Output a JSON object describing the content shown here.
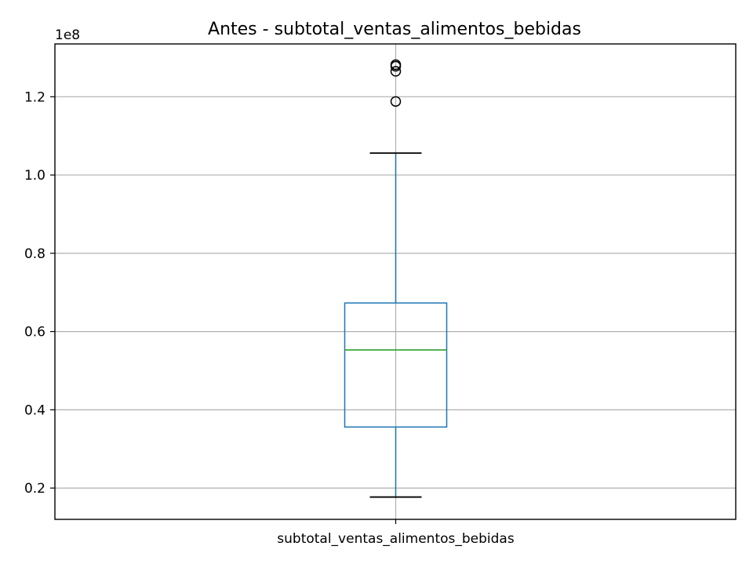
{
  "chart_data": {
    "type": "boxplot",
    "title": "Antes - subtotal_ventas_alimentos_bebidas",
    "xlabel": "",
    "ylabel": "",
    "y_scale_label": "1e8",
    "categories": [
      "subtotal_ventas_alimentos_bebidas"
    ],
    "ylim": [
      0.12,
      1.335
    ],
    "y_ticks": [
      0.2,
      0.4,
      0.6,
      0.8,
      1.0,
      1.2
    ],
    "y_tick_labels": [
      "0.2",
      "0.4",
      "0.6",
      "0.8",
      "1.0",
      "1.2"
    ],
    "grid": true,
    "box": {
      "whisker_low": 0.177,
      "q1": 0.356,
      "median": 0.553,
      "q3": 0.673,
      "whisker_high": 1.056
    },
    "outliers": [
      1.188,
      1.265,
      1.278,
      1.282
    ],
    "colors": {
      "box": "#1f77b4",
      "whisker": "#1f77b4",
      "median": "#2ca02c",
      "cap": "#000000",
      "outlier": "#000000",
      "grid": "#b0b0b0"
    }
  }
}
